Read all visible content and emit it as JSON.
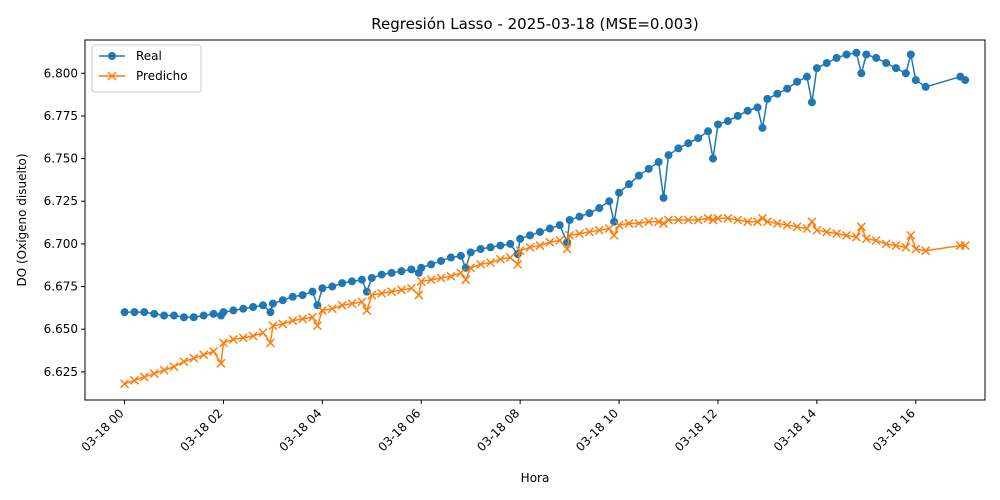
{
  "chart_data": {
    "type": "line",
    "title": "Regresión Lasso - 2025-03-18 (MSE=0.003)",
    "xlabel": "Hora",
    "ylabel": "DO (Oxígeno disuelto)",
    "xlim": [
      -0.8,
      17.4
    ],
    "ylim": [
      6.6085,
      6.8195
    ],
    "x_ticks": [
      0,
      2,
      4,
      6,
      8,
      10,
      12,
      14,
      16
    ],
    "x_tick_labels": [
      "03-18 00",
      "03-18 02",
      "03-18 04",
      "03-18 06",
      "03-18 08",
      "03-18 10",
      "03-18 12",
      "03-18 14",
      "03-18 16"
    ],
    "y_ticks": [
      6.625,
      6.65,
      6.675,
      6.7,
      6.725,
      6.75,
      6.775,
      6.8
    ],
    "y_tick_labels": [
      "6.625",
      "6.650",
      "6.675",
      "6.700",
      "6.725",
      "6.750",
      "6.775",
      "6.800"
    ],
    "legend_position": "top-left",
    "grid": false,
    "colors": {
      "real": "#1f77b4",
      "pred": "#ff7f0e"
    },
    "series": [
      {
        "name": "Real",
        "marker": "circle",
        "x": [
          0.0,
          0.2,
          0.4,
          0.6,
          0.8,
          1.0,
          1.2,
          1.4,
          1.6,
          1.8,
          1.95,
          2.0,
          2.2,
          2.4,
          2.6,
          2.8,
          2.95,
          3.0,
          3.2,
          3.4,
          3.6,
          3.8,
          3.9,
          4.0,
          4.2,
          4.4,
          4.6,
          4.8,
          4.9,
          5.0,
          5.2,
          5.4,
          5.6,
          5.8,
          5.95,
          6.0,
          6.2,
          6.4,
          6.6,
          6.8,
          6.9,
          7.0,
          7.2,
          7.4,
          7.6,
          7.8,
          7.95,
          8.0,
          8.2,
          8.4,
          8.6,
          8.8,
          8.95,
          9.0,
          9.2,
          9.4,
          9.6,
          9.8,
          9.9,
          10.0,
          10.2,
          10.4,
          10.6,
          10.8,
          10.9,
          11.0,
          11.2,
          11.4,
          11.6,
          11.8,
          11.9,
          12.0,
          12.2,
          12.4,
          12.6,
          12.8,
          12.9,
          13.0,
          13.2,
          13.4,
          13.6,
          13.8,
          13.9,
          14.0,
          14.2,
          14.4,
          14.6,
          14.8,
          14.9,
          15.0,
          15.2,
          15.4,
          15.6,
          15.8,
          15.9,
          16.0,
          16.2,
          16.9,
          17.0
        ],
        "y": [
          6.66,
          6.66,
          6.66,
          6.659,
          6.658,
          6.658,
          6.657,
          6.657,
          6.658,
          6.659,
          6.658,
          6.66,
          6.661,
          6.662,
          6.663,
          6.664,
          6.66,
          6.665,
          6.667,
          6.669,
          6.67,
          6.672,
          6.664,
          6.674,
          6.675,
          6.677,
          6.678,
          6.679,
          6.672,
          6.68,
          6.682,
          6.683,
          6.684,
          6.685,
          6.683,
          6.686,
          6.688,
          6.69,
          6.692,
          6.693,
          6.686,
          6.695,
          6.697,
          6.698,
          6.699,
          6.7,
          6.694,
          6.703,
          6.705,
          6.707,
          6.709,
          6.711,
          6.701,
          6.714,
          6.716,
          6.718,
          6.721,
          6.725,
          6.713,
          6.73,
          6.735,
          6.74,
          6.744,
          6.748,
          6.727,
          6.752,
          6.756,
          6.759,
          6.762,
          6.766,
          6.75,
          6.77,
          6.772,
          6.775,
          6.778,
          6.78,
          6.768,
          6.785,
          6.788,
          6.791,
          6.795,
          6.798,
          6.783,
          6.803,
          6.806,
          6.809,
          6.811,
          6.812,
          6.8,
          6.811,
          6.809,
          6.806,
          6.803,
          6.8,
          6.811,
          6.796,
          6.792,
          6.798,
          6.796
        ]
      },
      {
        "name": "Predicho",
        "marker": "x",
        "x": [
          0.0,
          0.2,
          0.4,
          0.6,
          0.8,
          1.0,
          1.2,
          1.4,
          1.6,
          1.8,
          1.95,
          2.0,
          2.2,
          2.4,
          2.6,
          2.8,
          2.95,
          3.0,
          3.2,
          3.4,
          3.6,
          3.8,
          3.9,
          4.0,
          4.2,
          4.4,
          4.6,
          4.8,
          4.9,
          5.0,
          5.2,
          5.4,
          5.6,
          5.8,
          5.95,
          6.0,
          6.2,
          6.4,
          6.6,
          6.8,
          6.9,
          7.0,
          7.2,
          7.4,
          7.6,
          7.8,
          7.95,
          8.0,
          8.2,
          8.4,
          8.6,
          8.8,
          8.95,
          9.0,
          9.2,
          9.4,
          9.6,
          9.8,
          9.9,
          10.0,
          10.2,
          10.4,
          10.6,
          10.8,
          10.9,
          11.0,
          11.2,
          11.4,
          11.6,
          11.8,
          11.9,
          12.0,
          12.2,
          12.4,
          12.6,
          12.8,
          12.9,
          13.0,
          13.2,
          13.4,
          13.6,
          13.8,
          13.9,
          14.0,
          14.2,
          14.4,
          14.6,
          14.8,
          14.9,
          15.0,
          15.2,
          15.4,
          15.6,
          15.8,
          15.9,
          16.0,
          16.2,
          16.9,
          17.0
        ],
        "y": [
          6.618,
          6.62,
          6.622,
          6.624,
          6.626,
          6.628,
          6.631,
          6.633,
          6.635,
          6.637,
          6.63,
          6.642,
          6.644,
          6.645,
          6.646,
          6.648,
          6.642,
          6.652,
          6.653,
          6.655,
          6.656,
          6.657,
          6.652,
          6.661,
          6.662,
          6.664,
          6.665,
          6.666,
          6.661,
          6.67,
          6.671,
          6.672,
          6.673,
          6.674,
          6.67,
          6.678,
          6.679,
          6.68,
          6.681,
          6.683,
          6.679,
          6.686,
          6.688,
          6.689,
          6.691,
          6.692,
          6.688,
          6.696,
          6.698,
          6.699,
          6.701,
          6.702,
          6.697,
          6.705,
          6.706,
          6.707,
          6.708,
          6.709,
          6.705,
          6.711,
          6.712,
          6.712,
          6.713,
          6.713,
          6.712,
          6.714,
          6.714,
          6.714,
          6.714,
          6.715,
          6.714,
          6.715,
          6.715,
          6.714,
          6.713,
          6.713,
          6.715,
          6.713,
          6.712,
          6.711,
          6.71,
          6.709,
          6.713,
          6.708,
          6.707,
          6.706,
          6.705,
          6.704,
          6.71,
          6.703,
          6.702,
          6.7,
          6.699,
          6.698,
          6.705,
          6.697,
          6.696,
          6.699,
          6.699
        ]
      }
    ]
  }
}
